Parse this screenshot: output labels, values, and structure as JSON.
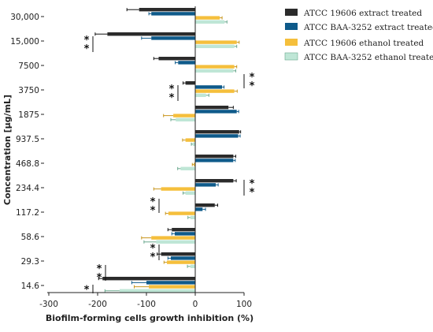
{
  "chart_data": {
    "type": "bar",
    "orientation": "horizontal",
    "xlabel": "Biofilm-forming cells growth inhibition (%)",
    "ylabel": "Concentration [µg/mL]",
    "xlim": [
      -300,
      100
    ],
    "xticks": [
      "-300",
      "-200",
      "-100",
      "0",
      "100"
    ],
    "xtick_values": [
      -300,
      -200,
      -100,
      0,
      100
    ],
    "categories": [
      "30,000",
      "15,000",
      "7500",
      "3750",
      "1875",
      "937.5",
      "468.8",
      "234.4",
      "117.2",
      "58.6",
      "29.3",
      "14.6"
    ],
    "series": [
      {
        "name": "ATCC 19606 extract treated",
        "color": "#2b2b2b",
        "errcolor": "#111111",
        "values": [
          -115,
          -180,
          -75,
          -20,
          68,
          90,
          78,
          78,
          40,
          -48,
          -70,
          -190
        ],
        "errors": [
          25,
          25,
          10,
          5,
          10,
          3,
          5,
          6,
          6,
          8,
          8,
          8
        ]
      },
      {
        "name": "ATCC BAA-3252 extract treated",
        "color": "#0e5a8a",
        "errcolor": "#0e5a8a",
        "values": [
          -90,
          -90,
          -35,
          55,
          85,
          88,
          78,
          42,
          15,
          -42,
          -50,
          -100
        ],
        "errors": [
          5,
          20,
          6,
          4,
          4,
          4,
          4,
          5,
          6,
          6,
          6,
          30
        ]
      },
      {
        "name": "ATCC 19606 ethanol treated",
        "color": "#f5bf3c",
        "errcolor": "#c8961d",
        "values": [
          50,
          85,
          80,
          80,
          -45,
          -20,
          -3,
          -70,
          -55,
          -90,
          -58,
          -95
        ],
        "errors": [
          5,
          5,
          5,
          6,
          20,
          6,
          3,
          15,
          6,
          20,
          6,
          30
        ]
      },
      {
        "name": "ATCC BAA-3252 ethanol treated",
        "color": "#bfe6d6",
        "errcolor": "#6aa88e",
        "values": [
          60,
          80,
          78,
          22,
          -40,
          -5,
          -30,
          -20,
          -10,
          -80,
          -10,
          -155
        ],
        "errors": [
          5,
          5,
          5,
          6,
          10,
          3,
          6,
          5,
          5,
          25,
          6,
          30
        ]
      }
    ],
    "annotations": [
      "**",
      "**",
      "**",
      "**",
      "**",
      "**",
      "**",
      "*"
    ],
    "legend_position": "top-right",
    "grid": false
  }
}
